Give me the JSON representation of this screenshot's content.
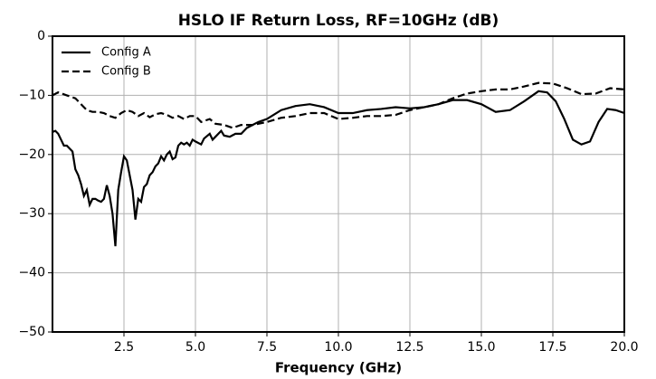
{
  "chart_data": {
    "type": "line",
    "title": "HSLO IF Return Loss, RF=10GHz (dB)",
    "xlabel": "Frequency (GHz)",
    "xlim": [
      0,
      20
    ],
    "ylim": [
      -50,
      0
    ],
    "xticks": [
      2.5,
      {
        "value": 5,
        "label": "5.0"
      },
      7.5,
      {
        "value": 10,
        "label": "10.0"
      },
      12.5,
      {
        "value": 15,
        "label": "15.0"
      },
      17.5,
      {
        "value": 20,
        "label": "20.0"
      }
    ],
    "yticks": [
      0,
      {
        "value": -10,
        "label": "−10"
      },
      {
        "value": -20,
        "label": "−20"
      },
      {
        "value": -30,
        "label": "−30"
      },
      {
        "value": -40,
        "label": "−40"
      },
      {
        "value": -50,
        "label": "−50"
      }
    ],
    "grid": true,
    "legend": "upper left",
    "series": [
      {
        "name": "Config A",
        "color": "#000000",
        "linestyle": "solid",
        "x": [
          0.0,
          0.1,
          0.2,
          0.3,
          0.4,
          0.5,
          0.6,
          0.7,
          0.8,
          0.9,
          1.0,
          1.1,
          1.2,
          1.3,
          1.4,
          1.5,
          1.6,
          1.7,
          1.8,
          1.9,
          2.0,
          2.1,
          2.2,
          2.3,
          2.4,
          2.5,
          2.6,
          2.7,
          2.8,
          2.9,
          3.0,
          3.1,
          3.2,
          3.3,
          3.4,
          3.5,
          3.6,
          3.7,
          3.8,
          3.9,
          4.0,
          4.1,
          4.2,
          4.3,
          4.4,
          4.5,
          4.6,
          4.7,
          4.8,
          4.9,
          5.0,
          5.2,
          5.3,
          5.5,
          5.6,
          5.7,
          5.9,
          6.0,
          6.2,
          6.4,
          6.6,
          6.8,
          7.0,
          7.2,
          7.5,
          8.0,
          8.5,
          9.0,
          9.5,
          10.0,
          10.5,
          11.0,
          11.5,
          12.0,
          12.5,
          13.0,
          13.5,
          14.0,
          14.5,
          15.0,
          15.5,
          16.0,
          16.5,
          17.0,
          17.3,
          17.6,
          17.9,
          18.2,
          18.5,
          18.8,
          19.1,
          19.4,
          19.7,
          20.0
        ],
        "values": [
          -16.2,
          -16.0,
          -16.5,
          -17.5,
          -18.5,
          -18.5,
          -19,
          -19.5,
          -22.5,
          -23.5,
          -25,
          -27,
          -26,
          -28.5,
          -27.5,
          -27.5,
          -27.8,
          -28,
          -27.5,
          -25.2,
          -27,
          -30,
          -35.5,
          -26,
          -23,
          -20.3,
          -21,
          -23.5,
          -26,
          -31,
          -27.5,
          -28,
          -25.5,
          -25,
          -23.5,
          -23,
          -22,
          -21.5,
          -20.3,
          -21,
          -20,
          -19.5,
          -20.8,
          -20.5,
          -18.5,
          -18,
          -18.3,
          -18,
          -18.5,
          -17.5,
          -17.8,
          -18.3,
          -17.3,
          -16.5,
          -17.5,
          -17,
          -16,
          -16.8,
          -17,
          -16.5,
          -16.5,
          -15.5,
          -15,
          -14.5,
          -14,
          -12.5,
          -11.8,
          -11.5,
          -12,
          -13,
          -13,
          -12.5,
          -12.3,
          -12,
          -12.2,
          -12,
          -11.5,
          -10.8,
          -10.8,
          -11.5,
          -12.8,
          -12.5,
          -11,
          -9.3,
          -9.5,
          -11,
          -14,
          -17.5,
          -18.3,
          -17.8,
          -14.5,
          -12.3,
          -12.5,
          -13
        ]
      },
      {
        "name": "Config B",
        "color": "#000000",
        "linestyle": "dashed",
        "x": [
          0.0,
          0.2,
          0.5,
          0.8,
          1.0,
          1.2,
          1.4,
          1.6,
          1.8,
          2.0,
          2.2,
          2.4,
          2.6,
          2.8,
          3.0,
          3.2,
          3.4,
          3.6,
          3.8,
          4.0,
          4.2,
          4.4,
          4.6,
          4.8,
          5.0,
          5.2,
          5.5,
          5.7,
          6.0,
          6.3,
          6.6,
          7.0,
          7.5,
          8.0,
          8.5,
          9.0,
          9.5,
          10.0,
          10.5,
          11.0,
          11.5,
          12.0,
          12.5,
          13.0,
          13.5,
          14.0,
          14.5,
          15.0,
          15.5,
          16.0,
          16.5,
          17.0,
          17.5,
          18.0,
          18.5,
          19.0,
          19.5,
          20.0
        ],
        "values": [
          -10,
          -9.5,
          -10,
          -10.5,
          -11.5,
          -12.5,
          -12.8,
          -12.8,
          -13,
          -13.5,
          -13.8,
          -13,
          -12.5,
          -12.8,
          -13.5,
          -13,
          -13.7,
          -13.2,
          -13,
          -13.3,
          -13.8,
          -13.5,
          -14,
          -13.5,
          -13.5,
          -14.5,
          -14,
          -14.8,
          -15,
          -15.5,
          -15,
          -15,
          -14.5,
          -13.8,
          -13.5,
          -13,
          -13,
          -14,
          -13.8,
          -13.5,
          -13.5,
          -13.3,
          -12.5,
          -12,
          -11.5,
          -10.5,
          -9.7,
          -9.3,
          -9,
          -9,
          -8.5,
          -7.9,
          -8.0,
          -8.8,
          -9.8,
          -9.7,
          -8.8,
          -9
        ]
      }
    ]
  }
}
